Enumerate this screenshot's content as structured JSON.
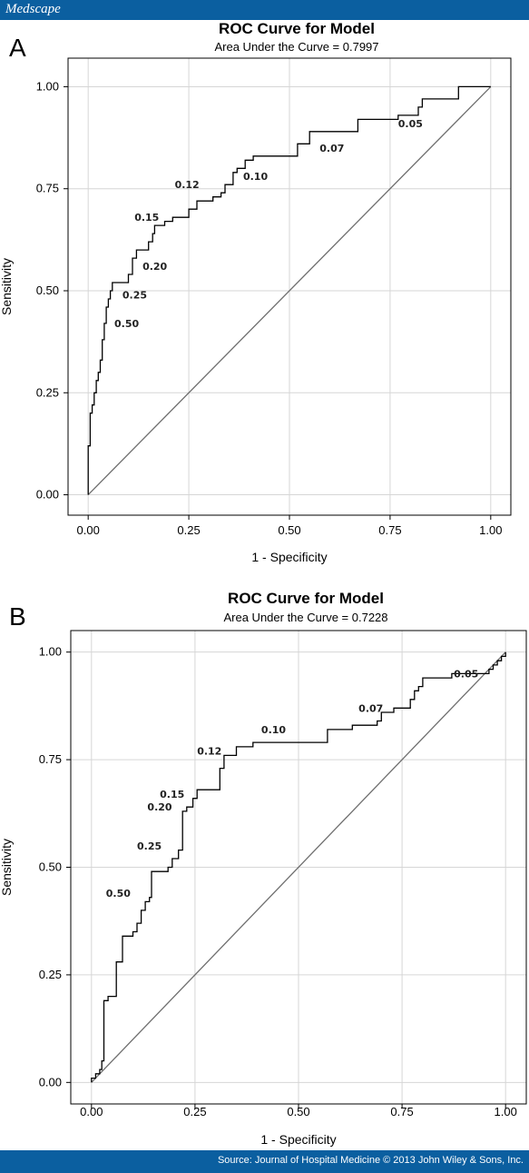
{
  "header": {
    "brand": "Medscape"
  },
  "footer": {
    "source": "Source: Journal of Hospital Medicine © 2013 John Wiley & Sons, Inc."
  },
  "colors": {
    "bar": "#0b5fa0",
    "curve": "#000000",
    "reference_line": "#6e6e6e",
    "grid": "#d6d6d6"
  },
  "chart_data": [
    {
      "type": "line",
      "panel_label": "A",
      "title": "ROC Curve for Model",
      "subtitle": "Area Under the Curve = 0.7997",
      "xlabel": "1 - Specificity",
      "ylabel": "Sensitivity",
      "xlim": [
        -0.05,
        1.05
      ],
      "ylim": [
        -0.05,
        1.07
      ],
      "xticks": [
        "0.00",
        "0.25",
        "0.50",
        "0.75",
        "1.00"
      ],
      "yticks": [
        "0.00",
        "0.25",
        "0.50",
        "0.75",
        "1.00"
      ],
      "grid": true,
      "reference_line": [
        [
          0,
          0
        ],
        [
          1,
          1
        ]
      ],
      "series": [
        {
          "points": [
            [
              0,
              0
            ],
            [
              0,
              0.12
            ],
            [
              0.005,
              0.12
            ],
            [
              0.005,
              0.2
            ],
            [
              0.01,
              0.2
            ],
            [
              0.01,
              0.22
            ],
            [
              0.015,
              0.22
            ],
            [
              0.015,
              0.25
            ],
            [
              0.02,
              0.25
            ],
            [
              0.02,
              0.28
            ],
            [
              0.025,
              0.28
            ],
            [
              0.025,
              0.3
            ],
            [
              0.03,
              0.3
            ],
            [
              0.03,
              0.33
            ],
            [
              0.035,
              0.33
            ],
            [
              0.035,
              0.38
            ],
            [
              0.04,
              0.38
            ],
            [
              0.04,
              0.42
            ],
            [
              0.045,
              0.42
            ],
            [
              0.045,
              0.46
            ],
            [
              0.05,
              0.46
            ],
            [
              0.05,
              0.48
            ],
            [
              0.055,
              0.48
            ],
            [
              0.055,
              0.5
            ],
            [
              0.06,
              0.5
            ],
            [
              0.06,
              0.52
            ],
            [
              0.1,
              0.52
            ],
            [
              0.1,
              0.54
            ],
            [
              0.11,
              0.54
            ],
            [
              0.11,
              0.58
            ],
            [
              0.12,
              0.58
            ],
            [
              0.12,
              0.6
            ],
            [
              0.15,
              0.6
            ],
            [
              0.15,
              0.62
            ],
            [
              0.16,
              0.62
            ],
            [
              0.16,
              0.64
            ],
            [
              0.165,
              0.64
            ],
            [
              0.165,
              0.66
            ],
            [
              0.19,
              0.66
            ],
            [
              0.19,
              0.67
            ],
            [
              0.21,
              0.67
            ],
            [
              0.21,
              0.68
            ],
            [
              0.25,
              0.68
            ],
            [
              0.25,
              0.7
            ],
            [
              0.27,
              0.7
            ],
            [
              0.27,
              0.72
            ],
            [
              0.31,
              0.72
            ],
            [
              0.31,
              0.73
            ],
            [
              0.33,
              0.73
            ],
            [
              0.33,
              0.74
            ],
            [
              0.34,
              0.74
            ],
            [
              0.34,
              0.76
            ],
            [
              0.36,
              0.76
            ],
            [
              0.36,
              0.79
            ],
            [
              0.37,
              0.79
            ],
            [
              0.37,
              0.8
            ],
            [
              0.39,
              0.8
            ],
            [
              0.39,
              0.82
            ],
            [
              0.41,
              0.82
            ],
            [
              0.41,
              0.83
            ],
            [
              0.52,
              0.83
            ],
            [
              0.52,
              0.86
            ],
            [
              0.55,
              0.86
            ],
            [
              0.55,
              0.89
            ],
            [
              0.67,
              0.89
            ],
            [
              0.67,
              0.92
            ],
            [
              0.77,
              0.92
            ],
            [
              0.77,
              0.93
            ],
            [
              0.82,
              0.93
            ],
            [
              0.82,
              0.95
            ],
            [
              0.82,
              0.95
            ],
            [
              0.83,
              0.95
            ],
            [
              0.83,
              0.97
            ],
            [
              0.92,
              0.97
            ],
            [
              0.92,
              1.0
            ],
            [
              1.0,
              1.0
            ]
          ]
        }
      ],
      "annotations": [
        {
          "text": "0.50",
          "x": 0.065,
          "y": 0.42
        },
        {
          "text": "0.25",
          "x": 0.085,
          "y": 0.49
        },
        {
          "text": "0.20",
          "x": 0.135,
          "y": 0.56
        },
        {
          "text": "0.15",
          "x": 0.115,
          "y": 0.68
        },
        {
          "text": "0.12",
          "x": 0.215,
          "y": 0.76
        },
        {
          "text": "0.10",
          "x": 0.385,
          "y": 0.78
        },
        {
          "text": "0.07",
          "x": 0.575,
          "y": 0.85
        },
        {
          "text": "0.05",
          "x": 0.77,
          "y": 0.91
        }
      ]
    },
    {
      "type": "line",
      "panel_label": "B",
      "title": "ROC Curve for Model",
      "subtitle": "Area Under the Curve = 0.7228",
      "xlabel": "1 - Specificity",
      "ylabel": "Sensitivity",
      "xlim": [
        -0.05,
        1.05
      ],
      "ylim": [
        -0.05,
        1.05
      ],
      "xticks": [
        "0.00",
        "0.25",
        "0.50",
        "0.75",
        "1.00"
      ],
      "yticks": [
        "0.00",
        "0.25",
        "0.50",
        "0.75",
        "1.00"
      ],
      "grid": true,
      "reference_line": [
        [
          0,
          0
        ],
        [
          1,
          1
        ]
      ],
      "series": [
        {
          "points": [
            [
              0,
              0
            ],
            [
              0,
              0.01
            ],
            [
              0.01,
              0.01
            ],
            [
              0.01,
              0.02
            ],
            [
              0.02,
              0.02
            ],
            [
              0.02,
              0.03
            ],
            [
              0.025,
              0.03
            ],
            [
              0.025,
              0.05
            ],
            [
              0.03,
              0.05
            ],
            [
              0.03,
              0.19
            ],
            [
              0.04,
              0.19
            ],
            [
              0.04,
              0.2
            ],
            [
              0.06,
              0.2
            ],
            [
              0.06,
              0.28
            ],
            [
              0.075,
              0.28
            ],
            [
              0.075,
              0.34
            ],
            [
              0.1,
              0.34
            ],
            [
              0.1,
              0.35
            ],
            [
              0.11,
              0.35
            ],
            [
              0.11,
              0.37
            ],
            [
              0.12,
              0.37
            ],
            [
              0.12,
              0.4
            ],
            [
              0.13,
              0.4
            ],
            [
              0.13,
              0.42
            ],
            [
              0.14,
              0.42
            ],
            [
              0.14,
              0.43
            ],
            [
              0.145,
              0.43
            ],
            [
              0.145,
              0.49
            ],
            [
              0.185,
              0.49
            ],
            [
              0.185,
              0.5
            ],
            [
              0.195,
              0.5
            ],
            [
              0.195,
              0.52
            ],
            [
              0.21,
              0.52
            ],
            [
              0.21,
              0.54
            ],
            [
              0.22,
              0.54
            ],
            [
              0.22,
              0.63
            ],
            [
              0.23,
              0.63
            ],
            [
              0.23,
              0.64
            ],
            [
              0.245,
              0.64
            ],
            [
              0.245,
              0.66
            ],
            [
              0.255,
              0.66
            ],
            [
              0.255,
              0.68
            ],
            [
              0.31,
              0.68
            ],
            [
              0.31,
              0.73
            ],
            [
              0.32,
              0.73
            ],
            [
              0.32,
              0.76
            ],
            [
              0.35,
              0.76
            ],
            [
              0.35,
              0.78
            ],
            [
              0.39,
              0.78
            ],
            [
              0.39,
              0.79
            ],
            [
              0.57,
              0.79
            ],
            [
              0.57,
              0.82
            ],
            [
              0.63,
              0.82
            ],
            [
              0.63,
              0.83
            ],
            [
              0.69,
              0.83
            ],
            [
              0.69,
              0.84
            ],
            [
              0.7,
              0.84
            ],
            [
              0.7,
              0.86
            ],
            [
              0.73,
              0.86
            ],
            [
              0.73,
              0.87
            ],
            [
              0.77,
              0.87
            ],
            [
              0.77,
              0.89
            ],
            [
              0.78,
              0.89
            ],
            [
              0.78,
              0.91
            ],
            [
              0.79,
              0.91
            ],
            [
              0.79,
              0.92
            ],
            [
              0.8,
              0.92
            ],
            [
              0.8,
              0.94
            ],
            [
              0.87,
              0.94
            ],
            [
              0.87,
              0.95
            ],
            [
              0.96,
              0.95
            ],
            [
              0.96,
              0.96
            ],
            [
              0.97,
              0.96
            ],
            [
              0.97,
              0.97
            ],
            [
              0.98,
              0.97
            ],
            [
              0.98,
              0.98
            ],
            [
              0.99,
              0.98
            ],
            [
              0.99,
              0.99
            ],
            [
              1.0,
              0.99
            ],
            [
              1.0,
              1.0
            ]
          ]
        }
      ],
      "annotations": [
        {
          "text": "0.50",
          "x": 0.035,
          "y": 0.44
        },
        {
          "text": "0.25",
          "x": 0.11,
          "y": 0.55
        },
        {
          "text": "0.20",
          "x": 0.135,
          "y": 0.64
        },
        {
          "text": "0.15",
          "x": 0.165,
          "y": 0.67
        },
        {
          "text": "0.12",
          "x": 0.255,
          "y": 0.77
        },
        {
          "text": "0.10",
          "x": 0.41,
          "y": 0.82
        },
        {
          "text": "0.07",
          "x": 0.645,
          "y": 0.87
        },
        {
          "text": "0.05",
          "x": 0.875,
          "y": 0.95
        }
      ]
    }
  ]
}
